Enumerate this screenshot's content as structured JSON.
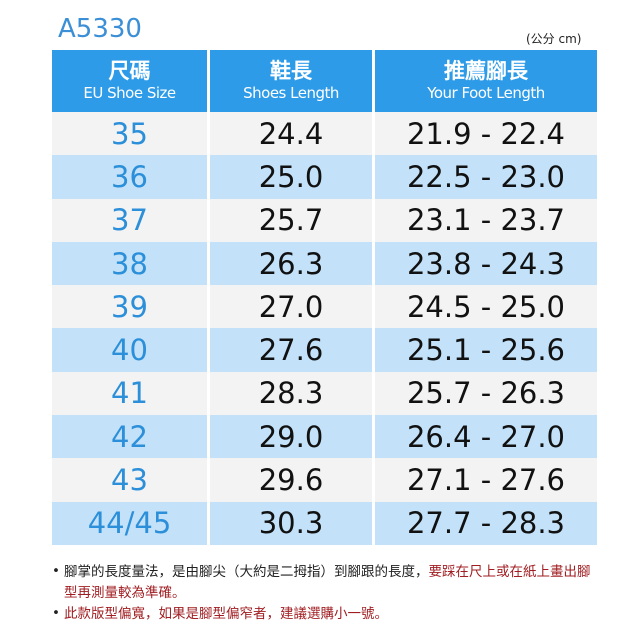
{
  "model": "A5330",
  "unit": "(公分 cm)",
  "headers": [
    {
      "zh": "尺碼",
      "en": "EU Shoe Size"
    },
    {
      "zh": "鞋長",
      "en": "Shoes Length"
    },
    {
      "zh": "推薦腳長",
      "en": "Your Foot Length"
    }
  ],
  "rows": [
    {
      "size": "35",
      "shoe": "24.4",
      "foot": "21.9 - 22.4"
    },
    {
      "size": "36",
      "shoe": "25.0",
      "foot": "22.5 - 23.0"
    },
    {
      "size": "37",
      "shoe": "25.7",
      "foot": "23.1 - 23.7"
    },
    {
      "size": "38",
      "shoe": "26.3",
      "foot": "23.8 - 24.3"
    },
    {
      "size": "39",
      "shoe": "27.0",
      "foot": "24.5 - 25.0"
    },
    {
      "size": "40",
      "shoe": "27.6",
      "foot": "25.1 - 25.6"
    },
    {
      "size": "41",
      "shoe": "28.3",
      "foot": "25.7 - 26.3"
    },
    {
      "size": "42",
      "shoe": "29.0",
      "foot": "26.4 - 27.0"
    },
    {
      "size": "43",
      "shoe": "29.6",
      "foot": "27.1 - 27.6"
    },
    {
      "size": "44/45",
      "shoe": "30.3",
      "foot": "27.7 - 28.3"
    }
  ],
  "notes": [
    {
      "bullet": "•",
      "plain": "腳掌的長度量法，是由腳尖（大約是二拇指）到腳跟的長度，",
      "red": "要踩在尺上或在紙上畫出腳型再測量較為準確。"
    },
    {
      "bullet": "•",
      "plain": "",
      "red": "此款版型偏寬，如果是腳型偏窄者，建議選購小一號。"
    }
  ],
  "colors": {
    "header": "#2d9be8",
    "row_odd": "#f3f3f3",
    "row_even": "#c3e2f9",
    "size_text": "#2c8fd9",
    "note_red": "#a01e22"
  }
}
